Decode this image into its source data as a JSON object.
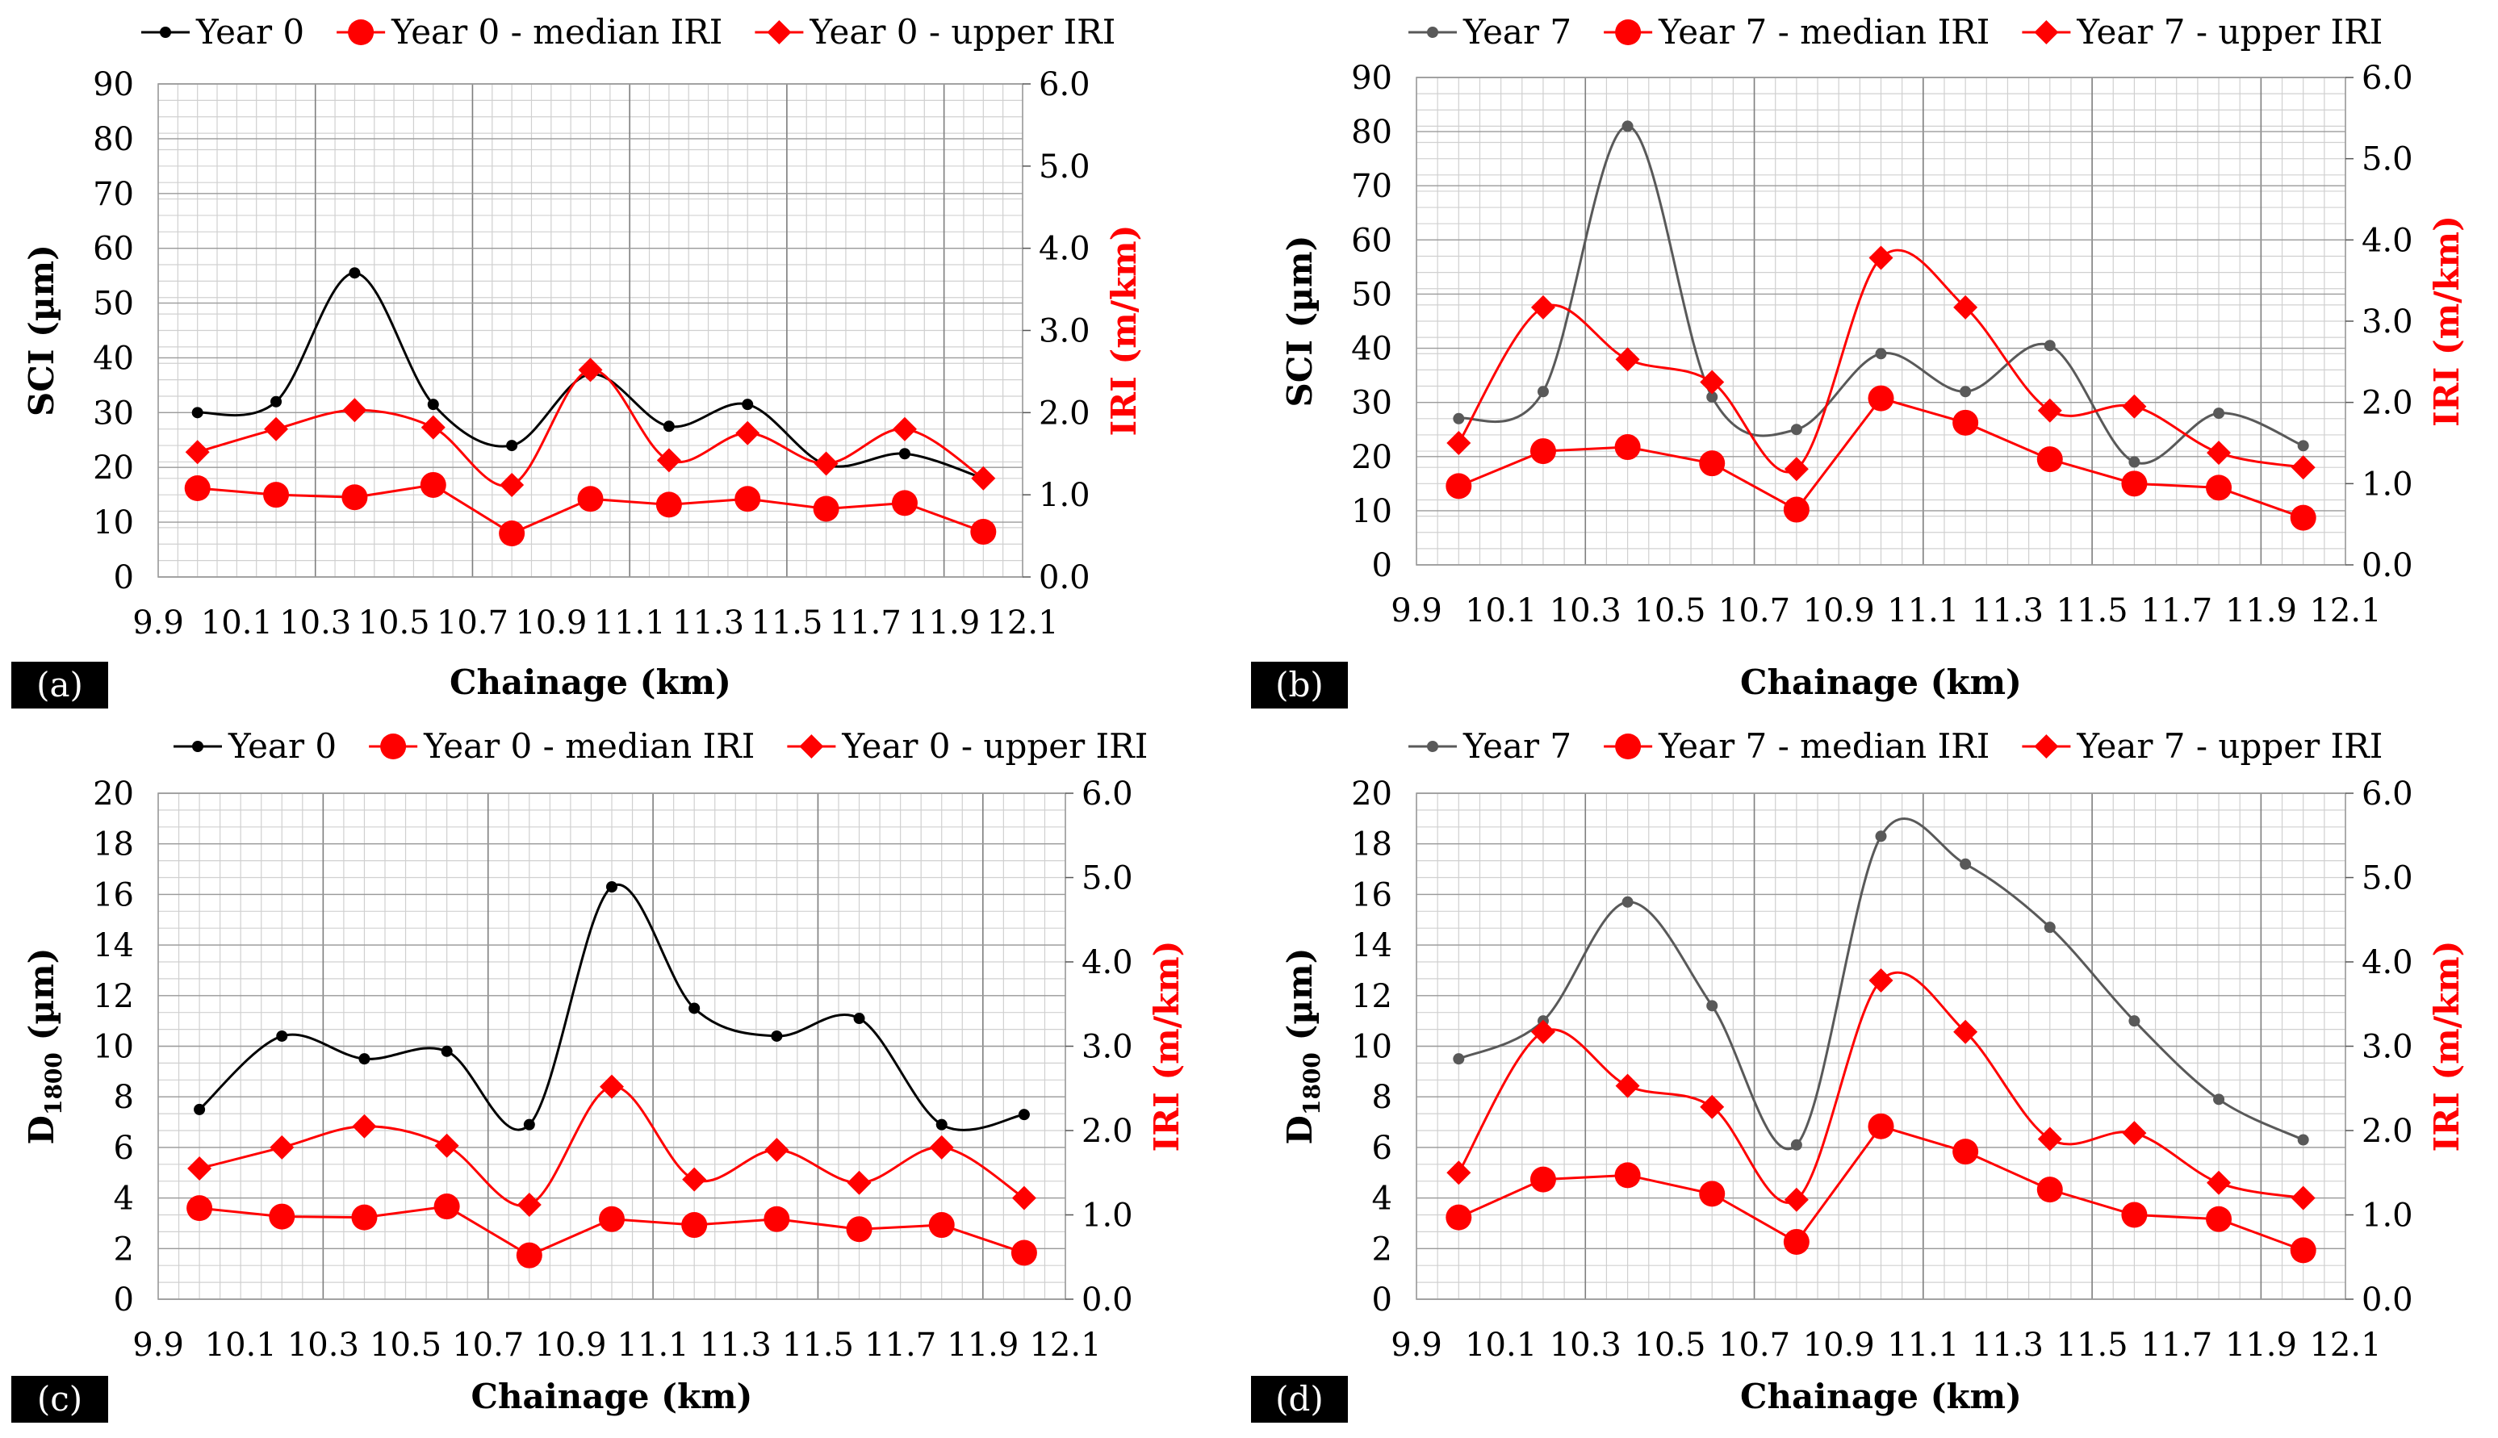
{
  "chart_data": [
    {
      "id": "a",
      "panel_label": "(a)",
      "type": "line",
      "xlabel": "Chainage (km)",
      "ylabel_left": "SCI (µm)",
      "ylabel_right": "IRI (m/km)",
      "xlim": [
        9.9,
        12.1
      ],
      "xticks": [
        "9.9",
        "10.1",
        "10.3",
        "10.5",
        "10.7",
        "10.9",
        "11.1",
        "11.3",
        "11.5",
        "11.7",
        "11.9",
        "12.1"
      ],
      "ylim_left": [
        0,
        90
      ],
      "yticks_left": [
        "0",
        "10",
        "20",
        "30",
        "40",
        "50",
        "60",
        "70",
        "80",
        "90"
      ],
      "ylim_right": [
        0,
        6
      ],
      "yticks_right": [
        "0.0",
        "1.0",
        "2.0",
        "3.0",
        "4.0",
        "5.0",
        "6.0"
      ],
      "x": [
        10.0,
        10.2,
        10.4,
        10.6,
        10.8,
        11.0,
        11.2,
        11.4,
        11.6,
        11.8,
        12.0
      ],
      "series": [
        {
          "name": "Year 0",
          "axis": "left",
          "marker": "dot",
          "color": "#000000",
          "values": [
            30,
            32,
            55.5,
            31.5,
            24,
            37,
            27.5,
            31.5,
            20.5,
            22.5,
            18
          ]
        },
        {
          "name": "Year 0 - median IRI",
          "axis": "right",
          "marker": "circle",
          "color": "#ff0000",
          "values": [
            1.08,
            1.0,
            0.97,
            1.12,
            0.53,
            0.95,
            0.88,
            0.95,
            0.83,
            0.9,
            0.55
          ]
        },
        {
          "name": "Year 0 - upper IRI",
          "axis": "right",
          "marker": "diamond",
          "color": "#ff0000",
          "values": [
            1.52,
            1.8,
            2.03,
            1.82,
            1.12,
            2.52,
            1.42,
            1.75,
            1.38,
            1.8,
            1.2
          ]
        }
      ]
    },
    {
      "id": "b",
      "panel_label": "(b)",
      "type": "line",
      "xlabel": "Chainage (km)",
      "ylabel_left": "SCI (µm)",
      "ylabel_right": "IRI (m/km)",
      "xlim": [
        9.9,
        12.1
      ],
      "xticks": [
        "9.9",
        "10.1",
        "10.3",
        "10.5",
        "10.7",
        "10.9",
        "11.1",
        "11.3",
        "11.5",
        "11.7",
        "11.9",
        "12.1"
      ],
      "ylim_left": [
        0,
        90
      ],
      "yticks_left": [
        "0",
        "10",
        "20",
        "30",
        "40",
        "50",
        "60",
        "70",
        "80",
        "90"
      ],
      "ylim_right": [
        0,
        6
      ],
      "yticks_right": [
        "0.0",
        "1.0",
        "2.0",
        "3.0",
        "4.0",
        "5.0",
        "6.0"
      ],
      "x": [
        10.0,
        10.2,
        10.4,
        10.6,
        10.8,
        11.0,
        11.2,
        11.4,
        11.6,
        11.8,
        12.0
      ],
      "series": [
        {
          "name": "Year 7",
          "axis": "left",
          "marker": "dot",
          "color": "#595959",
          "values": [
            27,
            32,
            81,
            31,
            25,
            39,
            32,
            40.5,
            19,
            28,
            22
          ]
        },
        {
          "name": "Year 7 - median IRI",
          "axis": "right",
          "marker": "circle",
          "color": "#ff0000",
          "values": [
            0.97,
            1.4,
            1.45,
            1.25,
            0.68,
            2.05,
            1.75,
            1.3,
            1.0,
            0.95,
            0.58
          ]
        },
        {
          "name": "Year 7 - upper IRI",
          "axis": "right",
          "marker": "diamond",
          "color": "#ff0000",
          "values": [
            1.5,
            3.17,
            2.53,
            2.25,
            1.18,
            3.78,
            3.17,
            1.9,
            1.95,
            1.38,
            1.2
          ]
        }
      ]
    },
    {
      "id": "c",
      "panel_label": "(c)",
      "type": "line",
      "xlabel": "Chainage (km)",
      "ylabel_left": "D1800 (µm)",
      "ylabel_left_main": "D",
      "ylabel_left_sub": "1800",
      "ylabel_left_unit": " (µm)",
      "ylabel_right": "IRI (m/km)",
      "xlim": [
        9.9,
        12.1
      ],
      "xticks": [
        "9.9",
        "10.1",
        "10.3",
        "10.5",
        "10.7",
        "10.9",
        "11.1",
        "11.3",
        "11.5",
        "11.7",
        "11.9",
        "12.1"
      ],
      "ylim_left": [
        0,
        20
      ],
      "yticks_left": [
        "0",
        "2",
        "4",
        "6",
        "8",
        "10",
        "12",
        "14",
        "16",
        "18",
        "20"
      ],
      "ylim_right": [
        0,
        6
      ],
      "yticks_right": [
        "0.0",
        "1.0",
        "2.0",
        "3.0",
        "4.0",
        "5.0",
        "6.0"
      ],
      "x": [
        10.0,
        10.2,
        10.4,
        10.6,
        10.8,
        11.0,
        11.2,
        11.4,
        11.6,
        11.8,
        12.0
      ],
      "series": [
        {
          "name": "Year 0",
          "axis": "left",
          "marker": "dot",
          "color": "#000000",
          "values": [
            7.5,
            10.4,
            9.5,
            9.8,
            6.9,
            16.3,
            11.5,
            10.4,
            11.1,
            6.9,
            7.3
          ]
        },
        {
          "name": "Year 0 - median IRI",
          "axis": "right",
          "marker": "circle",
          "color": "#ff0000",
          "values": [
            1.08,
            0.98,
            0.97,
            1.1,
            0.52,
            0.95,
            0.88,
            0.95,
            0.83,
            0.88,
            0.55
          ]
        },
        {
          "name": "Year 0 - upper IRI",
          "axis": "right",
          "marker": "diamond",
          "color": "#ff0000",
          "values": [
            1.55,
            1.8,
            2.05,
            1.82,
            1.12,
            2.52,
            1.42,
            1.77,
            1.38,
            1.8,
            1.2
          ]
        }
      ]
    },
    {
      "id": "d",
      "panel_label": "(d)",
      "type": "line",
      "xlabel": "Chainage (km)",
      "ylabel_left": "D1800 (µm)",
      "ylabel_left_main": "D",
      "ylabel_left_sub": "1800",
      "ylabel_left_unit": " (µm)",
      "ylabel_right": "IRI (m/km)",
      "xlim": [
        9.9,
        12.1
      ],
      "xticks": [
        "9.9",
        "10.1",
        "10.3",
        "10.5",
        "10.7",
        "10.9",
        "11.1",
        "11.3",
        "11.5",
        "11.7",
        "11.9",
        "12.1"
      ],
      "ylim_left": [
        0,
        20
      ],
      "yticks_left": [
        "0",
        "2",
        "4",
        "6",
        "8",
        "10",
        "12",
        "14",
        "16",
        "18",
        "20"
      ],
      "ylim_right": [
        0,
        6
      ],
      "yticks_right": [
        "0.0",
        "1.0",
        "2.0",
        "3.0",
        "4.0",
        "5.0",
        "6.0"
      ],
      "x": [
        10.0,
        10.2,
        10.4,
        10.6,
        10.8,
        11.0,
        11.2,
        11.4,
        11.6,
        11.8,
        12.0
      ],
      "series": [
        {
          "name": "Year 7",
          "axis": "left",
          "marker": "dot",
          "color": "#595959",
          "values": [
            9.5,
            11,
            15.7,
            11.6,
            6.1,
            18.3,
            17.2,
            14.7,
            11,
            7.9,
            6.3
          ]
        },
        {
          "name": "Year 7 - median IRI",
          "axis": "right",
          "marker": "circle",
          "color": "#ff0000",
          "values": [
            0.97,
            1.42,
            1.47,
            1.25,
            0.68,
            2.05,
            1.75,
            1.3,
            1.0,
            0.95,
            0.58
          ]
        },
        {
          "name": "Year 7 - upper IRI",
          "axis": "right",
          "marker": "diamond",
          "color": "#ff0000",
          "values": [
            1.5,
            3.17,
            2.53,
            2.28,
            1.18,
            3.78,
            3.17,
            1.9,
            1.97,
            1.38,
            1.2
          ]
        }
      ]
    }
  ]
}
